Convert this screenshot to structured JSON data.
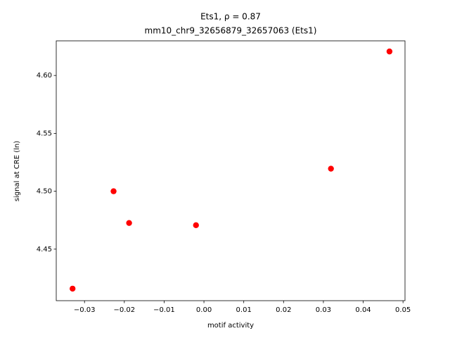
{
  "chart_data": {
    "type": "scatter",
    "title": "Ets1, ρ = 0.87",
    "subtitle": "mm10_chr9_32656879_32657063 (Ets1)",
    "x_label": "motif activity",
    "y_label": "signal at CRE (ln)",
    "color": "#ff0000",
    "grid": false,
    "x": [
      -0.033,
      -0.0227,
      -0.0188,
      -0.002,
      0.0319,
      0.0466
    ],
    "values": [
      4.4159,
      4.5,
      4.4726,
      4.4707,
      4.5195,
      4.6207
    ],
    "xlim": [
      -0.0371,
      0.0505
    ],
    "ylim": [
      4.4055,
      4.6299
    ],
    "xticks": [
      {
        "value": -0.03,
        "label": "−0.03"
      },
      {
        "value": -0.02,
        "label": "−0.02"
      },
      {
        "value": -0.01,
        "label": "−0.01"
      },
      {
        "value": 0,
        "label": "0.00"
      },
      0.01,
      0.02,
      0.03,
      0.04,
      0.05
    ],
    "yticks": [
      4.45,
      {
        "value": 4.5,
        "label": "4.50"
      },
      4.55,
      {
        "value": 4.6,
        "label": "4.60"
      }
    ]
  }
}
